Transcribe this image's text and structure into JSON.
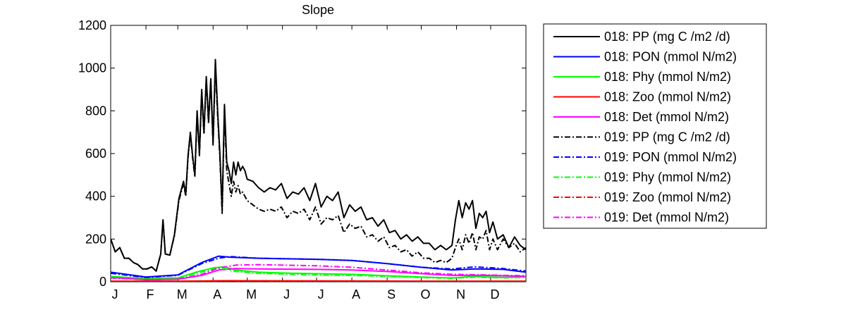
{
  "chart_data": {
    "type": "line",
    "title": "Slope",
    "xlabel": "",
    "ylabel": "",
    "xlim": [
      0,
      365
    ],
    "ylim": [
      0,
      1200
    ],
    "x_ticks": [
      {
        "label": "J",
        "day": 0
      },
      {
        "label": "F",
        "day": 31
      },
      {
        "label": "M",
        "day": 59
      },
      {
        "label": "A",
        "day": 90
      },
      {
        "label": "M",
        "day": 120
      },
      {
        "label": "J",
        "day": 151
      },
      {
        "label": "J",
        "day": 181
      },
      {
        "label": "A",
        "day": 212
      },
      {
        "label": "S",
        "day": 243
      },
      {
        "label": "O",
        "day": 273
      },
      {
        "label": "N",
        "day": 304
      },
      {
        "label": "D",
        "day": 334
      }
    ],
    "y_ticks": [
      0,
      200,
      400,
      600,
      800,
      1000,
      1200
    ],
    "grid": false,
    "legend_position": "outside-right",
    "series": [
      {
        "name": "018: PP (mg C /m2 /d)",
        "color": "#000000",
        "style": "solid",
        "x": [
          0,
          4,
          8,
          12,
          16,
          20,
          24,
          28,
          32,
          36,
          40,
          44,
          46,
          48,
          52,
          56,
          60,
          64,
          66,
          68,
          70,
          72,
          74,
          76,
          78,
          80,
          82,
          84,
          86,
          88,
          90,
          92,
          94,
          96,
          98,
          100,
          102,
          104,
          106,
          108,
          110,
          112,
          114,
          116,
          118,
          120,
          125,
          130,
          135,
          140,
          145,
          150,
          155,
          160,
          165,
          170,
          175,
          180,
          185,
          190,
          195,
          200,
          205,
          210,
          215,
          220,
          225,
          230,
          235,
          240,
          245,
          250,
          255,
          260,
          265,
          270,
          275,
          280,
          285,
          290,
          295,
          300,
          303,
          306,
          309,
          312,
          315,
          318,
          321,
          324,
          327,
          330,
          333,
          336,
          340,
          345,
          350,
          355,
          360,
          365
        ],
        "y": [
          200,
          140,
          160,
          110,
          110,
          90,
          80,
          60,
          60,
          70,
          50,
          130,
          290,
          130,
          125,
          220,
          390,
          470,
          410,
          590,
          700,
          590,
          500,
          800,
          600,
          900,
          700,
          960,
          750,
          950,
          650,
          1040,
          800,
          600,
          340,
          830,
          560,
          520,
          460,
          560,
          500,
          560,
          520,
          540,
          520,
          480,
          470,
          440,
          420,
          440,
          430,
          460,
          390,
          420,
          410,
          440,
          380,
          460,
          350,
          400,
          380,
          420,
          300,
          360,
          330,
          350,
          290,
          300,
          260,
          290,
          230,
          240,
          200,
          220,
          190,
          210,
          180,
          180,
          150,
          170,
          150,
          170,
          290,
          380,
          300,
          370,
          340,
          380,
          250,
          320,
          300,
          330,
          230,
          280,
          200,
          220,
          160,
          210,
          170,
          150
        ]
      },
      {
        "name": "018: PON (mmol N/m2)",
        "color": "#0000ff",
        "style": "solid",
        "x": [
          0,
          31,
          59,
          80,
          95,
          105,
          130,
          181,
          212,
          243,
          273,
          300,
          320,
          345,
          365
        ],
        "y": [
          45,
          22,
          32,
          90,
          120,
          115,
          110,
          105,
          100,
          85,
          68,
          55,
          60,
          58,
          45
        ]
      },
      {
        "name": "018: Phy (mmol N/m2)",
        "color": "#00ff00",
        "style": "solid",
        "x": [
          0,
          31,
          59,
          75,
          90,
          100,
          110,
          130,
          160,
          181,
          212,
          243,
          273,
          300,
          320,
          345,
          365
        ],
        "y": [
          25,
          15,
          18,
          45,
          65,
          70,
          55,
          45,
          40,
          38,
          35,
          28,
          22,
          18,
          25,
          20,
          22
        ]
      },
      {
        "name": "018: Zoo (mmol N/m2)",
        "color": "#ff0000",
        "style": "solid",
        "x": [
          0,
          59,
          100,
          181,
          273,
          365
        ],
        "y": [
          3,
          3,
          5,
          4,
          3,
          3
        ]
      },
      {
        "name": "018: Det (mmol N/m2)",
        "color": "#ff00ff",
        "style": "solid",
        "x": [
          0,
          31,
          59,
          80,
          95,
          110,
          130,
          181,
          212,
          243,
          273,
          300,
          330,
          365
        ],
        "y": [
          20,
          10,
          12,
          30,
          55,
          62,
          60,
          58,
          55,
          48,
          38,
          30,
          30,
          25
        ]
      },
      {
        "name": "019: PP (mg C /m2 /d)",
        "color": "#000000",
        "style": "dashdot",
        "x": [
          0,
          4,
          8,
          12,
          16,
          20,
          24,
          28,
          32,
          36,
          40,
          44,
          46,
          48,
          52,
          56,
          60,
          64,
          66,
          68,
          70,
          72,
          74,
          76,
          78,
          80,
          82,
          84,
          86,
          88,
          90,
          92,
          94,
          96,
          98,
          100,
          102,
          104,
          106,
          108,
          110,
          112,
          114,
          116,
          118,
          120,
          125,
          130,
          135,
          140,
          145,
          150,
          155,
          160,
          165,
          170,
          175,
          180,
          185,
          190,
          195,
          200,
          205,
          210,
          215,
          220,
          225,
          230,
          235,
          240,
          245,
          250,
          255,
          260,
          265,
          270,
          275,
          280,
          285,
          290,
          295,
          300,
          303,
          306,
          309,
          312,
          315,
          318,
          321,
          324,
          327,
          330,
          333,
          336,
          340,
          345,
          350,
          355,
          360,
          365
        ],
        "y": [
          200,
          140,
          160,
          110,
          110,
          90,
          80,
          60,
          60,
          70,
          50,
          130,
          285,
          130,
          125,
          215,
          380,
          460,
          400,
          580,
          690,
          580,
          490,
          790,
          590,
          890,
          690,
          950,
          740,
          940,
          640,
          1000,
          780,
          580,
          320,
          800,
          520,
          460,
          400,
          470,
          420,
          450,
          410,
          420,
          400,
          380,
          360,
          340,
          330,
          340,
          330,
          350,
          300,
          330,
          320,
          340,
          290,
          350,
          270,
          300,
          290,
          310,
          230,
          270,
          250,
          260,
          210,
          220,
          190,
          210,
          160,
          170,
          140,
          150,
          120,
          140,
          110,
          110,
          90,
          100,
          90,
          110,
          160,
          200,
          150,
          220,
          180,
          230,
          150,
          210,
          200,
          240,
          150,
          200,
          150,
          200,
          160,
          180,
          140,
          160
        ]
      },
      {
        "name": "019: PON (mmol N/m2)",
        "color": "#0000ff",
        "style": "dashdot",
        "x": [
          0,
          31,
          59,
          80,
          95,
          105,
          130,
          181,
          212,
          243,
          273,
          300,
          320,
          345,
          365
        ],
        "y": [
          40,
          20,
          30,
          85,
          110,
          118,
          110,
          105,
          100,
          85,
          68,
          60,
          70,
          62,
          50
        ]
      },
      {
        "name": "019: Phy (mmol N/m2)",
        "color": "#00ff00",
        "style": "dashdot",
        "x": [
          0,
          31,
          59,
          75,
          90,
          100,
          110,
          130,
          160,
          181,
          212,
          243,
          273,
          300,
          320,
          345,
          365
        ],
        "y": [
          22,
          12,
          15,
          40,
          58,
          62,
          48,
          40,
          35,
          32,
          30,
          25,
          20,
          16,
          22,
          18,
          20
        ]
      },
      {
        "name": "019: Zoo (mmol N/m2)",
        "color": "#ff0000",
        "style": "dashdot",
        "x": [
          0,
          59,
          100,
          181,
          273,
          365
        ],
        "y": [
          2,
          2,
          4,
          3,
          2,
          2
        ]
      },
      {
        "name": "019: Det (mmol N/m2)",
        "color": "#ff00ff",
        "style": "dashdot",
        "x": [
          0,
          31,
          59,
          80,
          95,
          110,
          130,
          181,
          212,
          243,
          273,
          300,
          330,
          365
        ],
        "y": [
          18,
          10,
          12,
          35,
          65,
          78,
          80,
          75,
          68,
          55,
          42,
          35,
          32,
          28
        ]
      }
    ]
  }
}
